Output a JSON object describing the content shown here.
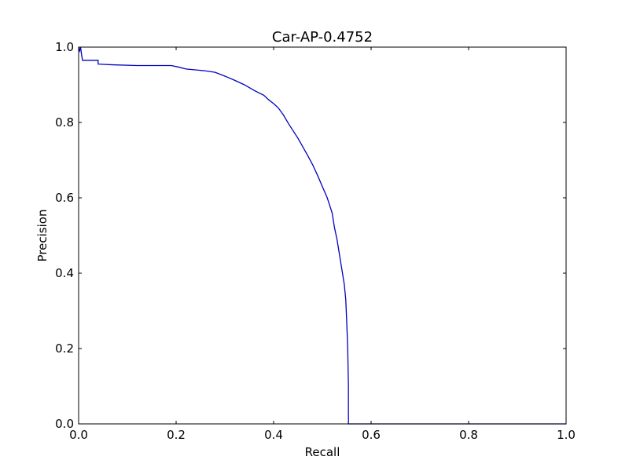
{
  "chart_data": {
    "type": "line",
    "title": "Car-AP-0.4752",
    "xlabel": "Recall",
    "ylabel": "Precision",
    "xlim": [
      0.0,
      1.0
    ],
    "ylim": [
      0.0,
      1.0
    ],
    "xticks": [
      "0.0",
      "0.2",
      "0.4",
      "0.6",
      "0.8",
      "1.0"
    ],
    "yticks": [
      "0.0",
      "0.2",
      "0.4",
      "0.6",
      "0.8",
      "1.0"
    ],
    "grid": false,
    "legend": false,
    "line_color": "#0000bf",
    "series": [
      {
        "x": [
          0.0,
          0.002,
          0.004,
          0.006,
          0.008,
          0.04,
          0.04,
          0.07,
          0.12,
          0.19,
          0.205,
          0.22,
          0.26,
          0.28,
          0.3,
          0.32,
          0.34,
          0.36,
          0.38,
          0.39,
          0.4,
          0.41,
          0.42,
          0.43,
          0.44,
          0.45,
          0.46,
          0.47,
          0.48,
          0.49,
          0.5,
          0.51,
          0.52,
          0.525,
          0.53,
          0.535,
          0.54,
          0.545,
          0.548,
          0.55,
          0.552,
          0.5535,
          0.5535,
          0.6,
          0.8,
          1.0
        ],
        "y": [
          1.0,
          0.99,
          1.0,
          0.98,
          0.965,
          0.965,
          0.955,
          0.953,
          0.951,
          0.951,
          0.947,
          0.942,
          0.937,
          0.933,
          0.923,
          0.912,
          0.9,
          0.885,
          0.872,
          0.86,
          0.85,
          0.838,
          0.82,
          0.798,
          0.778,
          0.758,
          0.735,
          0.712,
          0.688,
          0.66,
          0.63,
          0.6,
          0.56,
          0.52,
          0.49,
          0.45,
          0.41,
          0.37,
          0.33,
          0.27,
          0.2,
          0.1,
          0.0,
          0.0,
          0.0,
          0.0
        ]
      }
    ]
  }
}
